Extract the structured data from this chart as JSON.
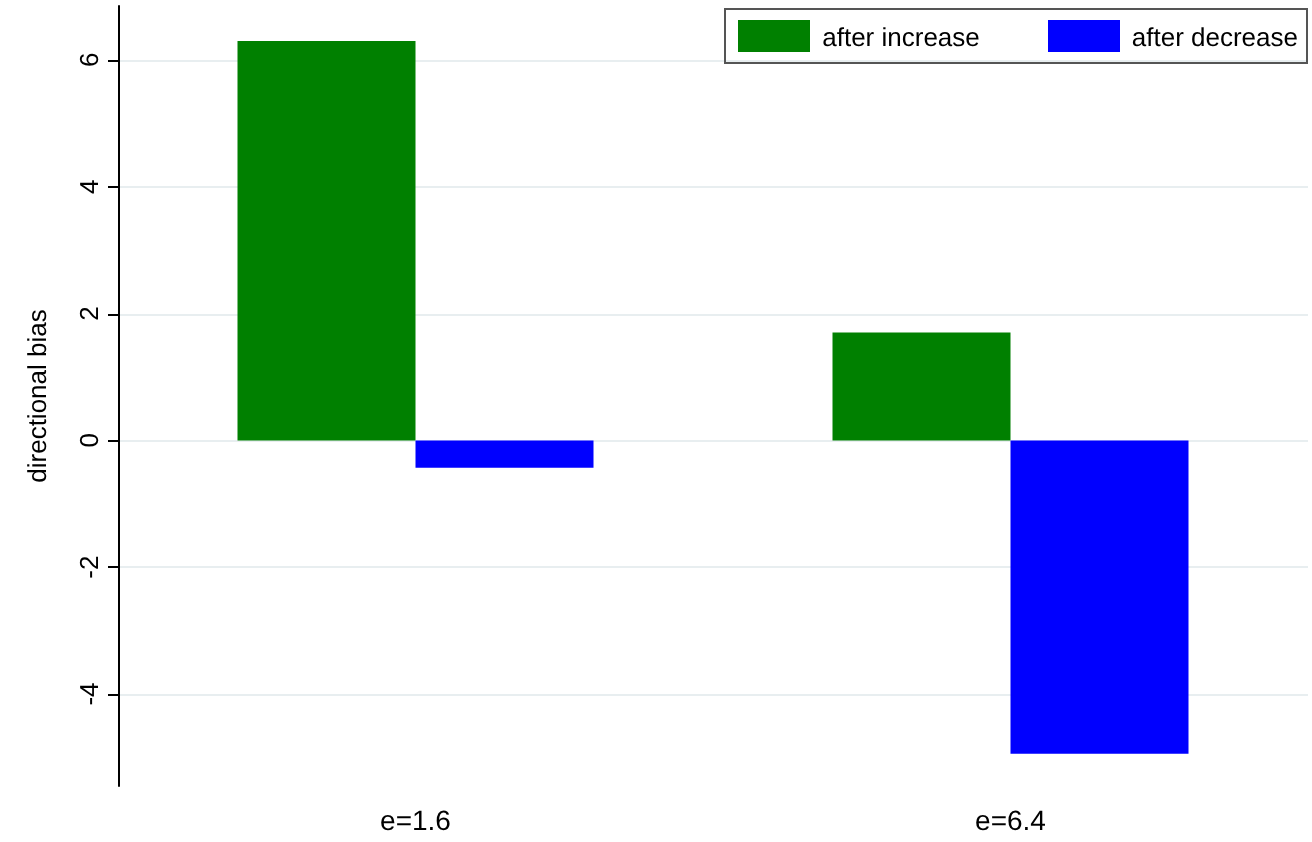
{
  "chart_data": {
    "type": "bar",
    "ylabel": "directional bias",
    "categories": [
      "e=1.6",
      "e=6.4"
    ],
    "series": [
      {
        "name": "after increase",
        "color": "#008000",
        "values": [
          6.3,
          1.7
        ]
      },
      {
        "name": "after decrease",
        "color": "#0000ff",
        "values": [
          -0.43,
          -4.94
        ]
      }
    ],
    "ylim": [
      -5.45,
      6.85
    ],
    "yticks": [
      -4,
      -2,
      0,
      2,
      4,
      6
    ],
    "grid": "y",
    "legend": "top right"
  }
}
